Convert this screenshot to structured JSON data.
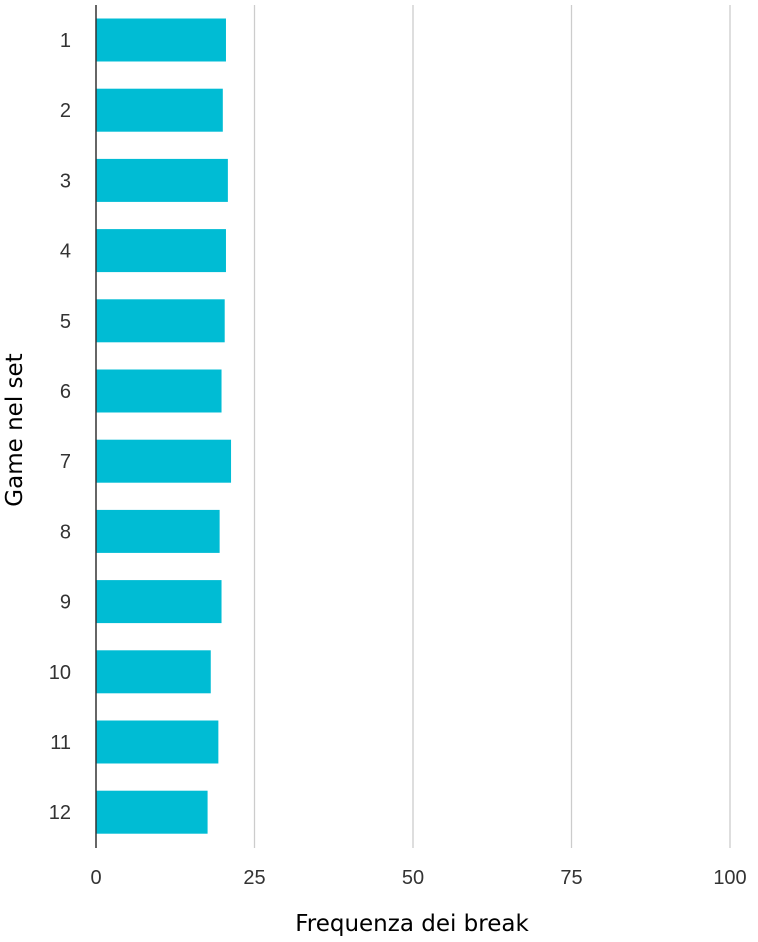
{
  "chart_data": {
    "type": "bar",
    "orientation": "horizontal",
    "categories": [
      "1",
      "2",
      "3",
      "4",
      "5",
      "6",
      "7",
      "8",
      "9",
      "10",
      "11",
      "12"
    ],
    "values": [
      20.5,
      20.0,
      20.8,
      20.5,
      20.3,
      19.8,
      21.3,
      19.5,
      19.8,
      18.1,
      19.3,
      17.6
    ],
    "xlabel": "Frequenza dei break",
    "ylabel": "Game nel set",
    "xlim": [
      0,
      100
    ],
    "xticks": [
      "0",
      "25",
      "50",
      "75",
      "100"
    ],
    "grid": "vertical",
    "legend": "none",
    "colors": {
      "bar": "#00BCD4",
      "grid": "#cccccc",
      "axis": "#333333"
    }
  }
}
